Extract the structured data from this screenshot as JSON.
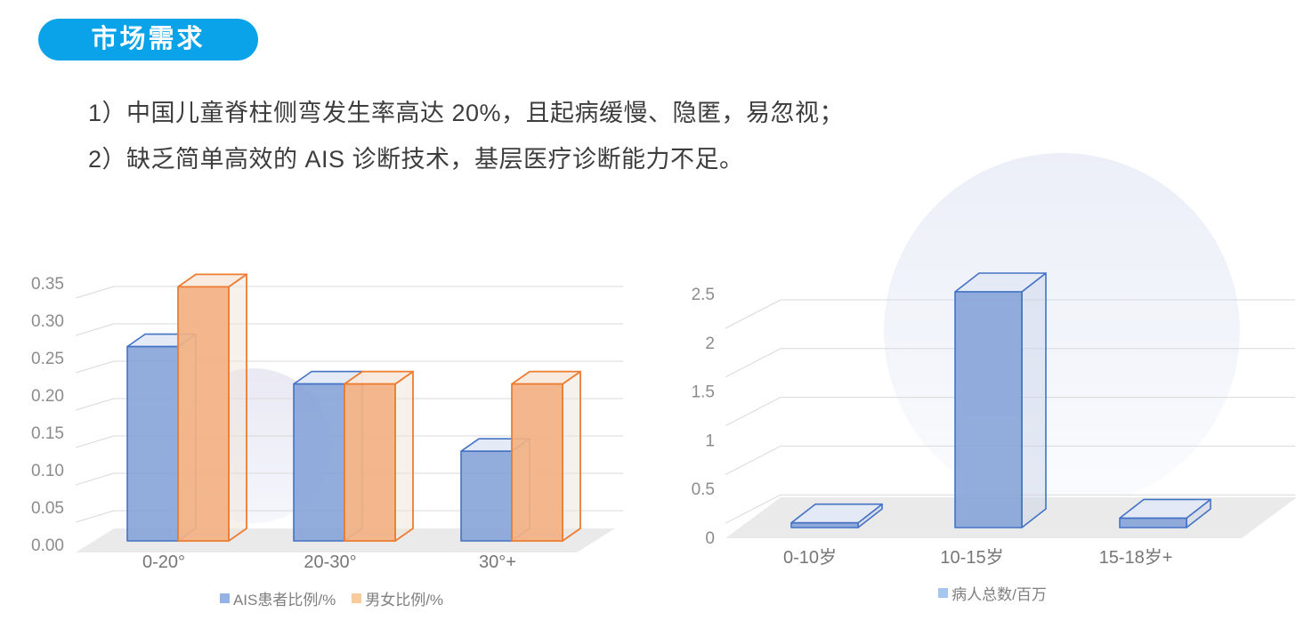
{
  "header": {
    "badge_label": "市场需求",
    "badge_color": "#0aa3e9"
  },
  "bullets": [
    "1）中国儿童脊柱侧弯发生率高达 20%，且起病缓慢、隐匿，易忽视；",
    "2）缺乏简单高效的 AIS 诊断技术，基层医疗诊断能力不足。"
  ],
  "colors": {
    "accent_blue": "#0aa3e9",
    "body_text": "#3d3d3d",
    "axis_text": "#8c8c8c",
    "category_text": "#767676",
    "legend_text": "#7f7f7f",
    "gridline": "#d9d9d9",
    "floor": "#eaeaea",
    "series_blue_fill": "#8faadc",
    "series_blue_border": "#4472c4",
    "series_orange_fill": "#f4b183",
    "series_orange_border": "#ed7d31"
  },
  "chart_data": [
    {
      "type": "bar",
      "projection": "3d",
      "categories": [
        "0-20°",
        "20-30°",
        "30°+"
      ],
      "series": [
        {
          "name": "AIS患者比例/%",
          "values": [
            0.26,
            0.21,
            0.12
          ],
          "front": "rgba(134,163,216,0.9)",
          "top": "rgba(228,234,245,0.95)",
          "side": "rgba(199,210,231,0.45)",
          "border": "#4472c4",
          "legend_swatch": "#94b3e4"
        },
        {
          "name": "男女比例/%",
          "values": [
            0.34,
            0.21,
            0.21
          ],
          "front": "rgba(243,177,131,0.92)",
          "top": "rgba(250,234,222,0.95)",
          "side": "rgba(240,227,218,0.5)",
          "border": "#ed7d31",
          "legend_swatch": "#f9ca9c"
        }
      ],
      "y_ticks": [
        "0.00",
        "0.05",
        "0.10",
        "0.15",
        "0.20",
        "0.25",
        "0.30",
        "0.35"
      ],
      "ylim": [
        0,
        0.35
      ],
      "grid": true,
      "legend_position": "bottom"
    },
    {
      "type": "bar",
      "projection": "3d",
      "categories": [
        "0-10岁",
        "10-15岁",
        "15-18岁+"
      ],
      "series": [
        {
          "name": "病人总数/百万",
          "values": [
            0.05,
            2.5,
            0.1
          ],
          "front": "rgba(134,163,216,0.9)",
          "top": "rgba(228,234,245,0.95)",
          "side": "rgba(199,210,231,0.45)",
          "border": "#4472c4",
          "legend_swatch": "#a5c6ef"
        }
      ],
      "y_ticks": [
        "0",
        "0.5",
        "1",
        "1.5",
        "2",
        "2.5"
      ],
      "ylim": [
        0,
        2.5
      ],
      "grid": true,
      "legend_position": "bottom"
    }
  ]
}
